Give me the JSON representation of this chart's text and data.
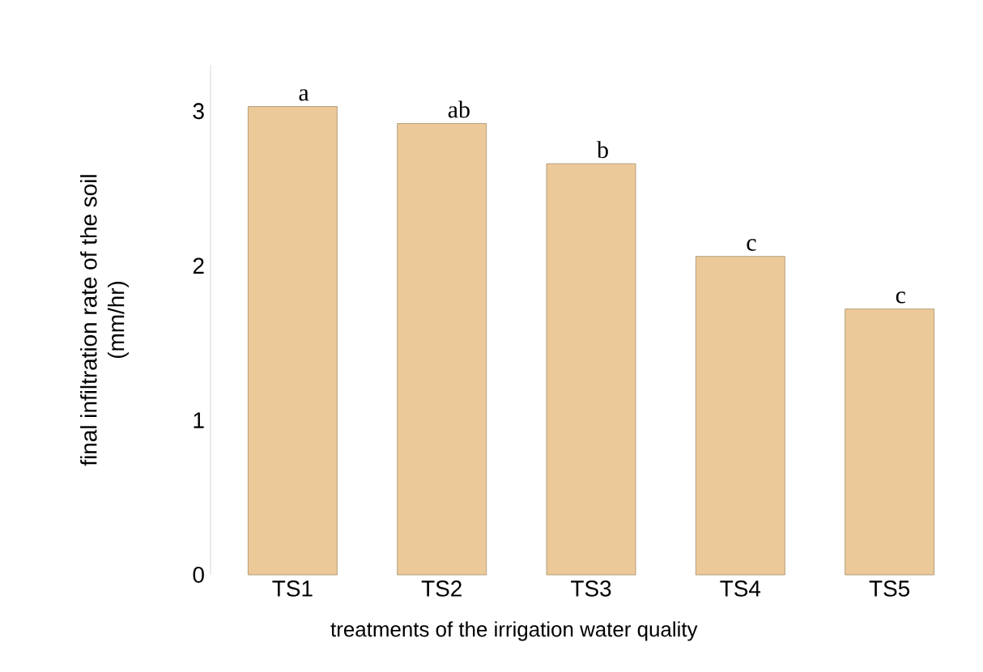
{
  "chart_data": {
    "type": "bar",
    "xlabel": "treatments of the irrigation water quality",
    "ylabel": "final  infiltration rate of the soil\n(mm/hr)",
    "categories": [
      "TS1",
      "TS2",
      "TS3",
      "TS4",
      "TS5"
    ],
    "values": [
      3.03,
      2.92,
      2.66,
      2.06,
      1.72
    ],
    "color": "#ecc999",
    "ylim": [
      0,
      3.3
    ],
    "yticks": [
      0,
      1,
      2,
      3
    ],
    "annotations": [
      {
        "text": "a",
        "x": "TS1",
        "y": 3.03
      },
      {
        "text": "ab",
        "x": "TS2",
        "y": 2.92
      },
      {
        "text": "b",
        "x": "TS3",
        "y": 2.66
      },
      {
        "text": "c",
        "x": "TS4",
        "y": 2.06
      },
      {
        "text": "c",
        "x": "TS5",
        "y": 1.72
      }
    ]
  }
}
